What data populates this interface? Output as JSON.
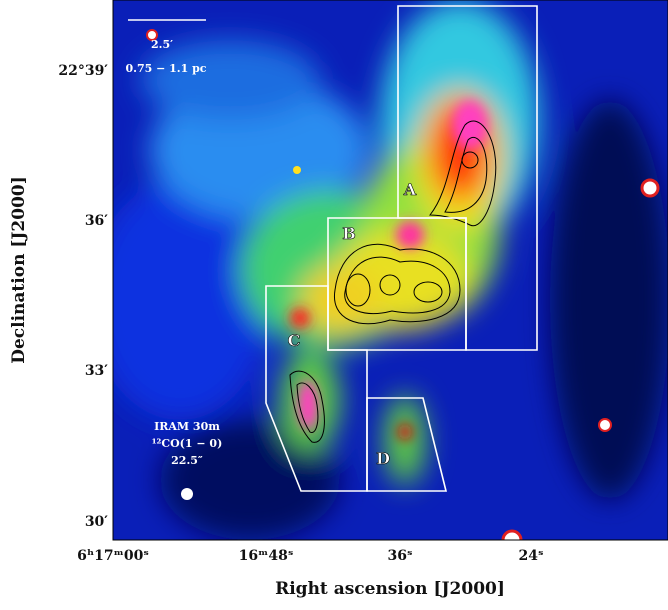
{
  "axes": {
    "x_label": "Right ascension [J2000]",
    "y_label": "Declination [J2000]",
    "x_ticks": [
      "6ʰ17ᵐ00ˢ",
      "16ᵐ48ˢ",
      "36ˢ",
      "24ˢ"
    ],
    "y_ticks": [
      "22°39′",
      "36′",
      "33′",
      "30′"
    ]
  },
  "annotations": {
    "scale_bar": "2.5′",
    "scale_physical": "0.75 − 1.1 pc",
    "telescope": "IRAM 30m",
    "line": "¹²CO(1 − 0)",
    "beam": "22.5″"
  },
  "regions": [
    "A",
    "B",
    "C",
    "D"
  ]
}
